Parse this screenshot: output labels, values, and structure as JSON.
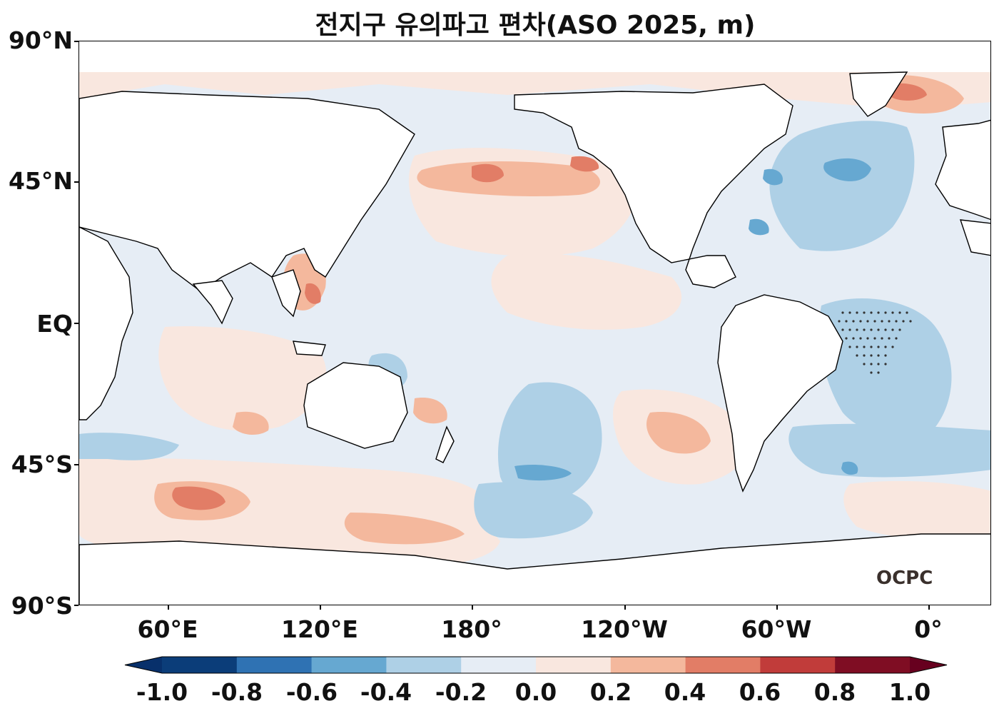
{
  "title": "전지구 유의파고 편차(ASO 2025, m)",
  "logo": "OCPC",
  "lat_labels": [
    "90°N",
    "45°N",
    "EQ",
    "45°S",
    "90°S"
  ],
  "lon_labels": [
    "60°E",
    "120°E",
    "180°",
    "120°W",
    "60°W",
    "0°"
  ],
  "colorbar": {
    "ticks": [
      "-1.0",
      "-0.8",
      "-0.6",
      "-0.4",
      "-0.2",
      "0.0",
      "0.2",
      "0.4",
      "0.6",
      "0.8",
      "1.0"
    ],
    "colors": [
      "#0b3d79",
      "#2f72b3",
      "#66a8d1",
      "#aed0e6",
      "#e6edf5",
      "#f9e7df",
      "#f4b89d",
      "#e27d66",
      "#c13c3a",
      "#7f0d23"
    ]
  },
  "colors": {
    "land": "#ffffff",
    "coast": "#000000",
    "ocean_neutral": "#e6edf5"
  }
}
